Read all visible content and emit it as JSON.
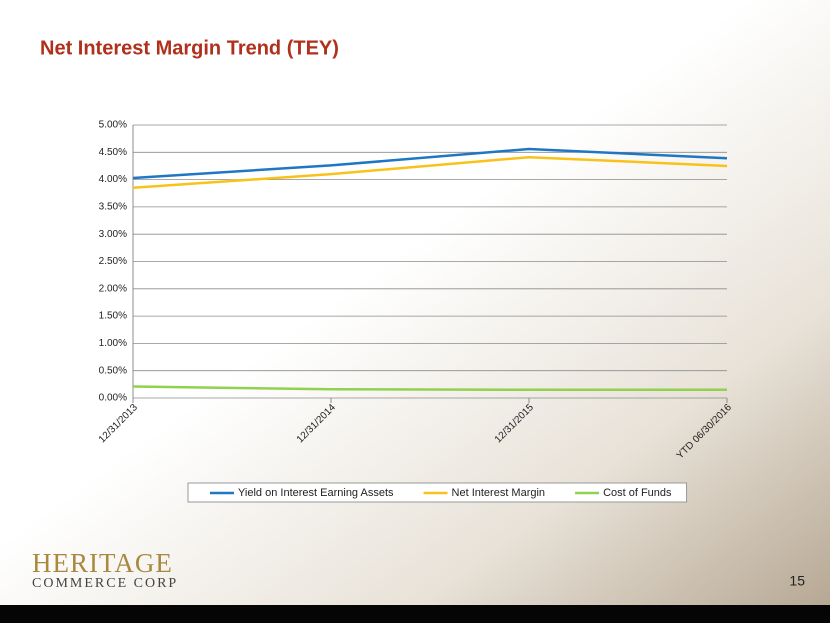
{
  "chart_data": {
    "type": "line",
    "title": "Net Interest Margin Trend (TEY)",
    "categories": [
      "12/31/2013",
      "12/31/2014",
      "12/31/2015",
      "YTD 06/30/2016"
    ],
    "series": [
      {
        "name": "Yield on Interest Earning Assets",
        "color": "#1f77c4",
        "values": [
          4.03,
          4.26,
          4.56,
          4.39
        ]
      },
      {
        "name": "Net Interest Margin",
        "color": "#f8c21a",
        "values": [
          3.85,
          4.1,
          4.41,
          4.25
        ]
      },
      {
        "name": "Cost of Funds",
        "color": "#92d050",
        "values": [
          0.21,
          0.16,
          0.15,
          0.15
        ]
      }
    ],
    "ylim": [
      0,
      5
    ],
    "yticks": [
      {
        "value": 0,
        "label": "0.00%"
      },
      {
        "value": 0.5,
        "label": "0.50%"
      },
      {
        "value": 1,
        "label": "1.00%"
      },
      {
        "value": 1.5,
        "label": "1.50%"
      },
      {
        "value": 2,
        "label": "2.00%"
      },
      {
        "value": 2.5,
        "label": "2.50%"
      },
      {
        "value": 3,
        "label": "3.00%"
      },
      {
        "value": 3.5,
        "label": "3.50%"
      },
      {
        "value": 4,
        "label": "4.00%"
      },
      {
        "value": 4.5,
        "label": "4.50%"
      },
      {
        "value": 5,
        "label": "5.00%"
      }
    ],
    "grid": true,
    "legend": "bottom"
  },
  "logo": {
    "name": "HERITAGE",
    "tagline": "COMMERCE CORP"
  },
  "page_number": "15"
}
